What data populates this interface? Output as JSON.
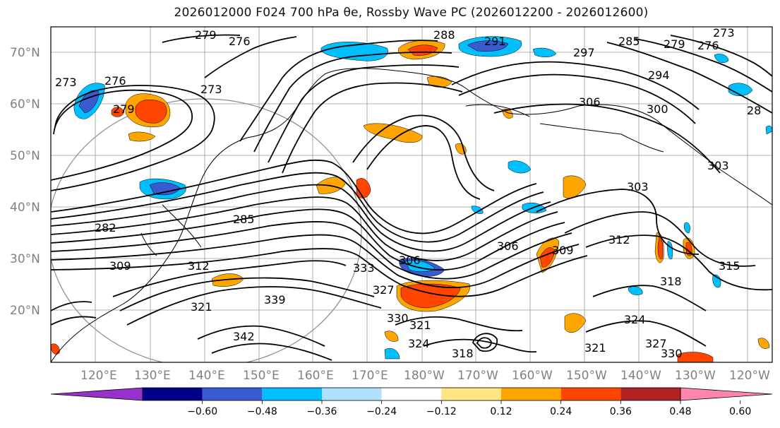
{
  "title": "2026012000 F024 700 hPa θe, Rossby Wave PC (2026012200 - 2026012600)",
  "lat_labels": [
    "70°N",
    "60°N",
    "50°N",
    "40°N",
    "30°N",
    "20°N"
  ],
  "lon_labels": [
    "120°E",
    "130°E",
    "140°E",
    "150°E",
    "160°E",
    "170°E",
    "180°W",
    "170°W",
    "160°W",
    "150°W",
    "140°W",
    "130°W",
    "120°W"
  ],
  "contour_labels": [
    "279",
    "276",
    "288",
    "291",
    "285",
    "279",
    "276",
    "273",
    "297",
    "294",
    "276",
    "273",
    "279",
    "273",
    "306",
    "300",
    "28",
    "303",
    "303",
    "285",
    "282",
    "312",
    "309",
    "306",
    "312",
    "306",
    "309",
    "318",
    "321",
    "315",
    "333",
    "327",
    "339",
    "330",
    "321",
    "324",
    "321",
    "318",
    "327",
    "330",
    "342",
    "324"
  ],
  "colorbar": {
    "ticks": [
      "−0.60",
      "−0.48",
      "−0.36",
      "−0.24",
      "−0.12",
      "0.12",
      "0.24",
      "0.36",
      "0.48",
      "0.60"
    ],
    "colors": [
      "#9932cc",
      "#00008b",
      "#3a5bd0",
      "#00bfff",
      "#b0e2ff",
      "#ffffff",
      "#ffe680",
      "#ffa500",
      "#ff4500",
      "#b22222",
      "#ff85ad"
    ]
  }
}
